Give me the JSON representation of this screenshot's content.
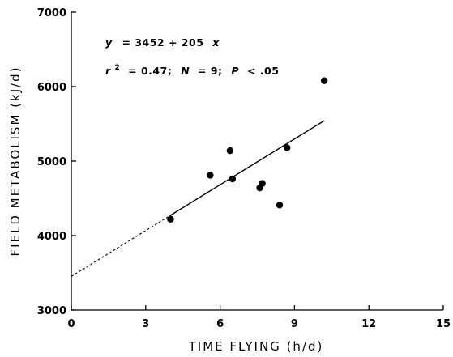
{
  "chart_data": {
    "type": "scatter",
    "xlabel": "TIME FLYING (h/d)",
    "ylabel": "FIELD METABOLISM (kJ/d)",
    "xlim": [
      0,
      15
    ],
    "ylim": [
      3000,
      7000
    ],
    "x_ticks": [
      0,
      3,
      6,
      9,
      12,
      15
    ],
    "y_ticks": [
      3000,
      4000,
      5000,
      6000,
      7000
    ],
    "x_tick_labels": [
      "0",
      "3",
      "6",
      "9",
      "12",
      "15"
    ],
    "y_tick_labels": [
      "3000",
      "4000",
      "5000",
      "6000",
      "7000"
    ],
    "grid": false,
    "points": [
      {
        "x": 4.0,
        "y": 4220
      },
      {
        "x": 5.6,
        "y": 4810
      },
      {
        "x": 6.4,
        "y": 5140
      },
      {
        "x": 6.5,
        "y": 4760
      },
      {
        "x": 7.6,
        "y": 4640
      },
      {
        "x": 7.7,
        "y": 4700
      },
      {
        "x": 8.4,
        "y": 4410
      },
      {
        "x": 8.7,
        "y": 5180
      },
      {
        "x": 10.2,
        "y": 6080
      }
    ],
    "fit": {
      "intercept": 3452,
      "slope": 205,
      "solid_x_range": [
        4.0,
        10.2
      ],
      "dashed_x_range": [
        0,
        4.0
      ]
    },
    "annotations": {
      "equation": {
        "y_var": "y",
        "rest": "= 3452 + 205",
        "x_var": "x"
      },
      "stats": {
        "r_var": "r",
        "r_exp": "2",
        "r_value": "= 0.47;",
        "n_var": "N",
        "n_value": "= 9;",
        "p_var": "P",
        "p_value": "< .05"
      }
    }
  }
}
